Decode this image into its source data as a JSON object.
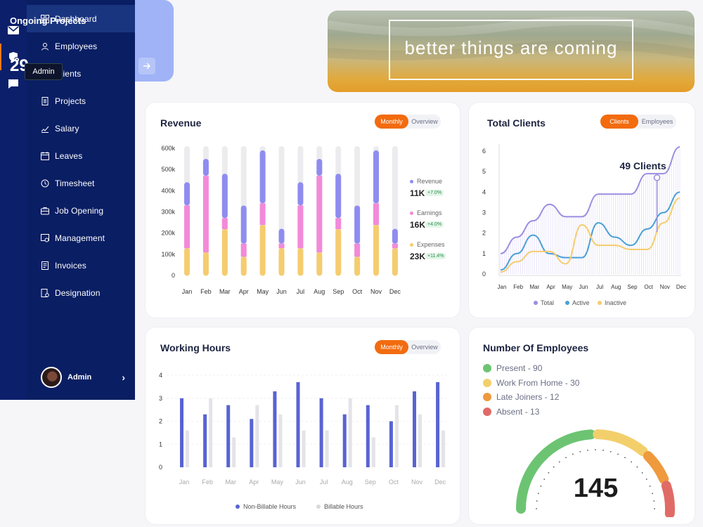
{
  "rail": {
    "icons": [
      "mail-icon",
      "admin-shield-icon",
      "chat-icon"
    ],
    "tooltip": "Admin"
  },
  "sidebar": {
    "items": [
      {
        "label": "Dashboard",
        "icon": "grid-icon"
      },
      {
        "label": "Employees",
        "icon": "user-icon"
      },
      {
        "label": "Clients",
        "icon": "clients-icon"
      },
      {
        "label": "Projects",
        "icon": "document-icon"
      },
      {
        "label": "Salary",
        "icon": "salary-icon"
      },
      {
        "label": "Leaves",
        "icon": "calendar-icon"
      },
      {
        "label": "Timesheet",
        "icon": "clock-icon"
      },
      {
        "label": "Job Opening",
        "icon": "briefcase-icon"
      },
      {
        "label": "Management",
        "icon": "management-icon"
      },
      {
        "label": "Invoices",
        "icon": "invoice-icon"
      },
      {
        "label": "Designation",
        "icon": "designation-icon"
      }
    ],
    "profile": {
      "name": "Admin"
    }
  },
  "ongoing": {
    "title": "Ongoing Projects",
    "count": "29"
  },
  "banner": {
    "text": "better things are coming"
  },
  "revenue": {
    "title": "Revenue",
    "toggle": [
      "Monthly",
      "Overview"
    ],
    "legend": [
      {
        "name": "Revenue",
        "value": "11K",
        "change": "+7.0%",
        "color": "#8f8cf0"
      },
      {
        "name": "Earnings",
        "value": "16K",
        "change": "+4.0%",
        "color": "#f28ad8"
      },
      {
        "name": "Expenses",
        "value": "23K",
        "change": "+11.4%",
        "color": "#f5cc6f"
      }
    ]
  },
  "clients": {
    "title": "Total Clients",
    "toggle": [
      "Clients",
      "Employees"
    ],
    "annotation": "49 Clients",
    "legend": [
      "Total",
      "Active",
      "Inactive"
    ]
  },
  "hours": {
    "title": "Working Hours",
    "toggle": [
      "Monthly",
      "Overview"
    ],
    "legend": [
      "Non-Billable Hours",
      "Billable Hours"
    ]
  },
  "employees": {
    "title": "Number Of Employees",
    "total": "145",
    "legend": [
      {
        "label": "Present - 90",
        "color": "#6cc472"
      },
      {
        "label": "Work From Home - 30",
        "color": "#f3cf6c"
      },
      {
        "label": "Late Joiners - 12",
        "color": "#ee9a3d"
      },
      {
        "label": "Absent - 13",
        "color": "#e06b66"
      }
    ]
  },
  "chart_data": [
    {
      "type": "bar",
      "title": "Revenue",
      "categories": [
        "Jan",
        "Feb",
        "Mar",
        "Apr",
        "May",
        "Jun",
        "Jul",
        "Aug",
        "Sep",
        "Oct",
        "Nov",
        "Dec"
      ],
      "y_ticks": [
        "0",
        "100k",
        "200k",
        "300k",
        "400k",
        "500k",
        "600k"
      ],
      "ylim": [
        0,
        600
      ],
      "stacked": true,
      "series": [
        {
          "name": "Expenses",
          "color": "#f5cc6f",
          "values": [
            130,
            110,
            220,
            90,
            240,
            130,
            130,
            110,
            220,
            90,
            240,
            130
          ]
        },
        {
          "name": "Earnings",
          "color": "#f28ad8",
          "values": [
            200,
            360,
            50,
            60,
            100,
            20,
            200,
            360,
            50,
            60,
            100,
            20
          ]
        },
        {
          "name": "Revenue",
          "color": "#8f8cf0",
          "values": [
            110,
            80,
            210,
            180,
            250,
            70,
            110,
            80,
            210,
            180,
            250,
            70
          ]
        }
      ]
    },
    {
      "type": "line",
      "title": "Total Clients",
      "categories": [
        "Jan",
        "Feb",
        "Mar",
        "Apr",
        "May",
        "Jun",
        "Jul",
        "Aug",
        "Sep",
        "Oct",
        "Nov",
        "Dec"
      ],
      "y_ticks": [
        "0",
        "1",
        "2",
        "3",
        "4",
        "5",
        "6"
      ],
      "ylim": [
        0,
        6
      ],
      "series": [
        {
          "name": "Total",
          "color": "#9b8ee0",
          "values": [
            1.0,
            1.8,
            2.6,
            3.4,
            2.8,
            2.8,
            3.9,
            3.9,
            3.9,
            4.9,
            4.9,
            6.2
          ]
        },
        {
          "name": "Active",
          "color": "#4aa0d6",
          "values": [
            0.2,
            1.0,
            1.9,
            1.0,
            0.8,
            0.8,
            2.5,
            1.8,
            1.4,
            2.2,
            3.0,
            4.0
          ]
        },
        {
          "name": "Inactive",
          "color": "#f5cc6f",
          "values": [
            0.1,
            0.6,
            1.1,
            1.1,
            0.5,
            2.4,
            1.4,
            1.4,
            1.2,
            1.2,
            2.5,
            3.7
          ]
        }
      ]
    },
    {
      "type": "bar",
      "title": "Working Hours",
      "categories": [
        "Jan",
        "Feb",
        "Mar",
        "Apr",
        "May",
        "Jun",
        "Jul",
        "Aug",
        "Sep",
        "Oct",
        "Nov",
        "Dec"
      ],
      "y_ticks": [
        "0",
        "1",
        "2",
        "3",
        "4"
      ],
      "ylim": [
        0,
        4
      ],
      "series": [
        {
          "name": "Non-Billable Hours",
          "color": "#5863d3",
          "values": [
            3.0,
            2.3,
            2.7,
            2.1,
            3.3,
            3.7,
            3.0,
            2.3,
            2.7,
            2.0,
            3.3,
            3.7
          ]
        },
        {
          "name": "Billable Hours",
          "color": "#e3e3e8",
          "values": [
            1.6,
            3.0,
            1.3,
            2.7,
            2.3,
            1.6,
            1.6,
            3.0,
            1.3,
            2.7,
            2.3,
            1.6
          ]
        }
      ]
    }
  ]
}
